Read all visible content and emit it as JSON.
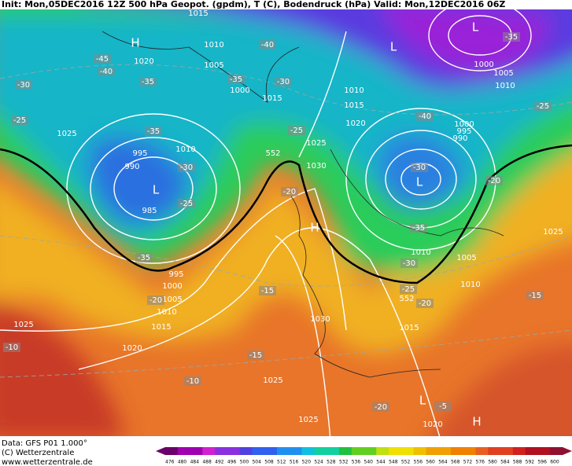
{
  "header": {
    "title": "Init: Mon,05DEC2016 12Z 500 hPa Geopot. (gpdm), T (C), Bodendruck (hPa) Valid: Mon,12DEC2016 06Z"
  },
  "map": {
    "labels": [
      "1015",
      "H",
      "1020",
      "1010",
      "1005",
      "1000",
      "1015",
      "995",
      "990",
      "L",
      "985",
      "1010",
      "1025",
      "L",
      "L",
      "1000",
      "1005",
      "1010",
      "1010",
      "1015",
      "1020",
      "1025",
      "1030",
      "1000",
      "995",
      "990",
      "L",
      "H",
      "1010",
      "1005",
      "1010",
      "1015",
      "1030",
      "995",
      "1000",
      "1005",
      "1010",
      "1015",
      "1020",
      "1025",
      "1025",
      "1025",
      "1020",
      "L",
      "H",
      "1025",
      "552",
      "552",
      "-45",
      "-40",
      "-35",
      "-30",
      "-25",
      "-40",
      "-35",
      "-30",
      "-25",
      "-35",
      "-30",
      "-25",
      "-35",
      "-20",
      "-15",
      "-10",
      "-15",
      "-10",
      "-20",
      "-35",
      "-40",
      "-30",
      "-35",
      "-30",
      "-25",
      "-20",
      "-20",
      "-25",
      "-15",
      "-20",
      "-5"
    ]
  },
  "footer": {
    "source": "Data: GFS P01 1.000°",
    "copyright": "(C) Wetterzentrale",
    "url": "www.wetterzentrale.de"
  },
  "colorbar": {
    "labels": [
      476,
      480,
      484,
      488,
      492,
      496,
      500,
      504,
      508,
      512,
      516,
      520,
      524,
      528,
      532,
      536,
      540,
      544,
      548,
      552,
      556,
      560,
      564,
      568,
      572,
      576,
      580,
      584,
      588,
      592,
      596,
      600
    ]
  }
}
